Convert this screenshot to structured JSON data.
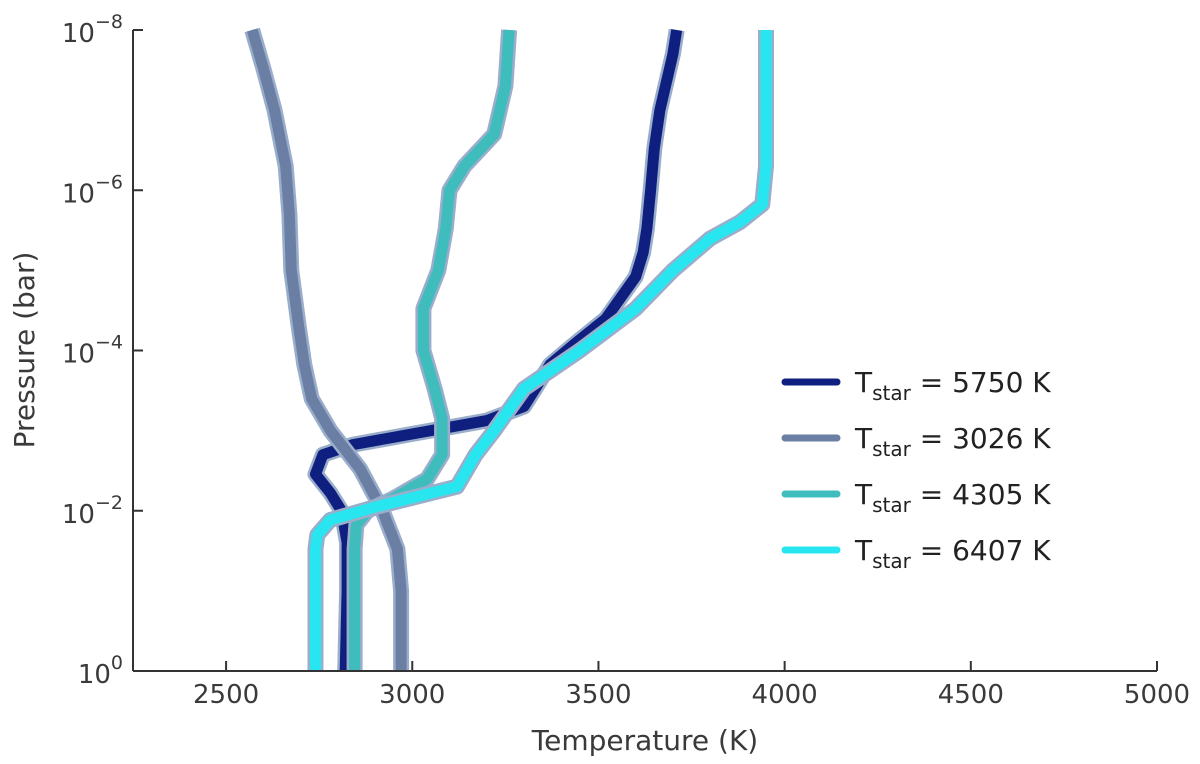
{
  "chart_data": {
    "type": "line",
    "xlabel": "Temperature (K)",
    "ylabel": "Pressure (bar)",
    "xlim": [
      2250,
      5000
    ],
    "ylim": [
      1,
      1e-08
    ],
    "yscale": "log",
    "grid": false,
    "legend_position": "center-right",
    "x_ticks": [
      2500,
      3000,
      3500,
      4000,
      4500,
      5000
    ],
    "x_tick_labels": [
      "2500",
      "3000",
      "3500",
      "4000",
      "4500",
      "5000"
    ],
    "y_ticks": [
      1e-08,
      1e-06,
      0.0001,
      0.01,
      1
    ],
    "y_tick_labels": [
      {
        "base": "10",
        "exp": "−8"
      },
      {
        "base": "10",
        "exp": "−6"
      },
      {
        "base": "10",
        "exp": "−4"
      },
      {
        "base": "10",
        "exp": "−2"
      },
      {
        "base": "10",
        "exp": "0"
      }
    ],
    "series": [
      {
        "name": "T",
        "name_sub": "star",
        "name_rest": " = 5750 K",
        "color": "#0e1f7f",
        "points": [
          [
            3710,
            1e-08
          ],
          [
            3700,
            2e-08
          ],
          [
            3680,
            5e-08
          ],
          [
            3665,
            1e-07
          ],
          [
            3650,
            3e-07
          ],
          [
            3640,
            1e-06
          ],
          [
            3630,
            3e-06
          ],
          [
            3620,
            6e-06
          ],
          [
            3600,
            1.2e-05
          ],
          [
            3520,
            4e-05
          ],
          [
            3440,
            8e-05
          ],
          [
            3370,
            0.00015
          ],
          [
            3330,
            0.0003
          ],
          [
            3300,
            0.0005
          ],
          [
            3200,
            0.00075
          ],
          [
            3000,
            0.0011
          ],
          [
            2840,
            0.0015
          ],
          [
            2760,
            0.002
          ],
          [
            2740,
            0.0035
          ],
          [
            2780,
            0.006
          ],
          [
            2810,
            0.01
          ],
          [
            2825,
            0.025
          ],
          [
            2825,
            0.1
          ],
          [
            2820,
            1
          ]
        ]
      },
      {
        "name": "T",
        "name_sub": "star",
        "name_rest": " = 3026 K",
        "color": "#6a7fa3",
        "points": [
          [
            2570,
            1e-08
          ],
          [
            2600,
            3e-08
          ],
          [
            2630,
            1e-07
          ],
          [
            2660,
            5e-07
          ],
          [
            2670,
            2e-06
          ],
          [
            2675,
            1e-05
          ],
          [
            2695,
            5e-05
          ],
          [
            2710,
            0.00015
          ],
          [
            2730,
            0.0004
          ],
          [
            2780,
            0.001
          ],
          [
            2860,
            0.003
          ],
          [
            2920,
            0.01
          ],
          [
            2960,
            0.03
          ],
          [
            2970,
            0.1
          ],
          [
            2970,
            1
          ]
        ]
      },
      {
        "name": "T",
        "name_sub": "star",
        "name_rest": " = 4305 K",
        "color": "#3fbcbc",
        "points": [
          [
            3260,
            1e-08
          ],
          [
            3250,
            5e-08
          ],
          [
            3220,
            2e-07
          ],
          [
            3140,
            5e-07
          ],
          [
            3100,
            1e-06
          ],
          [
            3090,
            3e-06
          ],
          [
            3070,
            1e-05
          ],
          [
            3030,
            3e-05
          ],
          [
            3030,
            0.0001
          ],
          [
            3060,
            0.0003
          ],
          [
            3080,
            0.0007
          ],
          [
            3080,
            0.002
          ],
          [
            3040,
            0.004
          ],
          [
            2950,
            0.007
          ],
          [
            2880,
            0.01
          ],
          [
            2850,
            0.015
          ],
          [
            2845,
            0.03
          ],
          [
            2845,
            0.1
          ],
          [
            2845,
            1
          ]
        ]
      },
      {
        "name": "T",
        "name_sub": "star",
        "name_rest": " = 6407 K",
        "color": "#28e6f0",
        "points": [
          [
            3950,
            1e-08
          ],
          [
            3950,
            5e-07
          ],
          [
            3940,
            1.5e-06
          ],
          [
            3880,
            2.5e-06
          ],
          [
            3800,
            4e-06
          ],
          [
            3700,
            1e-05
          ],
          [
            3600,
            3e-05
          ],
          [
            3450,
            0.0001
          ],
          [
            3300,
            0.0003
          ],
          [
            3220,
            0.001
          ],
          [
            3170,
            0.002
          ],
          [
            3120,
            0.005
          ],
          [
            2900,
            0.009
          ],
          [
            2780,
            0.013
          ],
          [
            2745,
            0.02
          ],
          [
            2740,
            0.03
          ],
          [
            2740,
            0.1
          ],
          [
            2740,
            1
          ]
        ]
      }
    ]
  }
}
